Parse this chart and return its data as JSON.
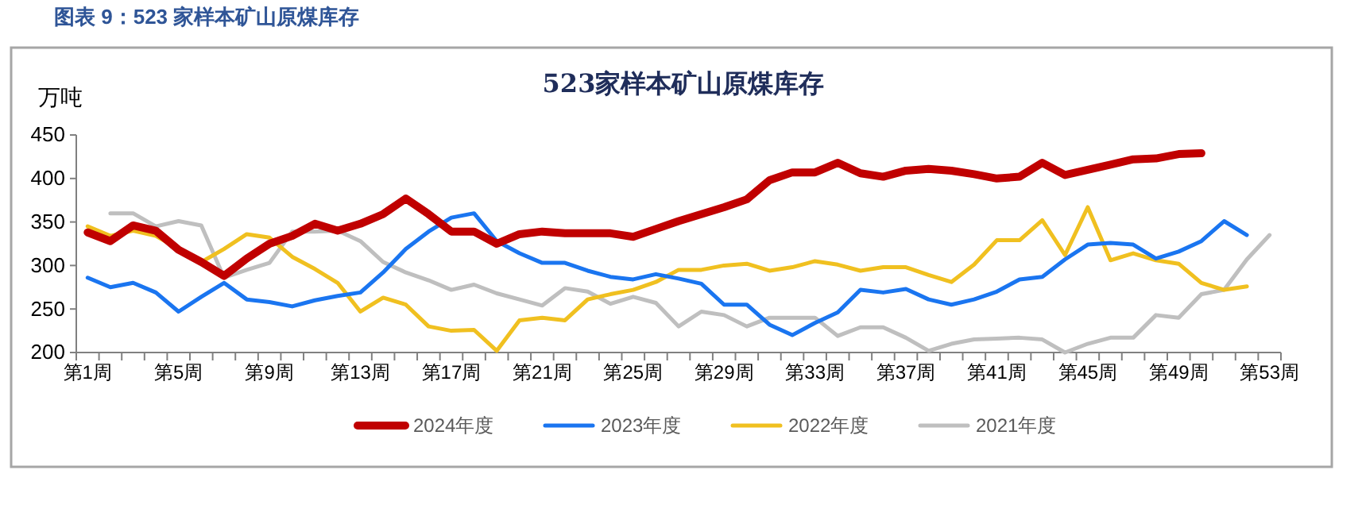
{
  "chart_data": {
    "type": "line",
    "title": "523家样本矿山原煤库存",
    "ylabel": "万吨",
    "annotations": [
      "图表 9：523 家样本矿山原煤库存"
    ],
    "categories": [
      "第1周",
      null,
      null,
      null,
      "第5周",
      null,
      null,
      null,
      "第9周",
      null,
      null,
      null,
      "第13周",
      null,
      null,
      null,
      "第17周",
      null,
      null,
      null,
      "第21周",
      null,
      null,
      null,
      "第25周",
      null,
      null,
      null,
      "第29周",
      null,
      null,
      null,
      "第33周",
      null,
      null,
      null,
      "第37周",
      null,
      null,
      null,
      "第41周",
      null,
      null,
      null,
      "第45周",
      null,
      null,
      null,
      "第49周",
      null,
      null,
      null,
      "第53周"
    ],
    "ylim": [
      200,
      450
    ],
    "yticks": [
      200,
      250,
      300,
      350,
      400,
      450
    ],
    "legend": "bottom",
    "series": [
      {
        "name": "2024年度",
        "color": "#c00000",
        "values": [
          338,
          328,
          346,
          340,
          318,
          304,
          288,
          308,
          325,
          334,
          348,
          340,
          348,
          359,
          377,
          359,
          339,
          339,
          325,
          336,
          339,
          337,
          337,
          337,
          333,
          342,
          351,
          359,
          367,
          376,
          398,
          407,
          407,
          418,
          406,
          402,
          409,
          411,
          409,
          405,
          400,
          402,
          418,
          404,
          410,
          416,
          422,
          423,
          428,
          429,
          null,
          null,
          null
        ]
      },
      {
        "name": "2023年度",
        "color": "#1a75f0",
        "values": [
          286,
          275,
          280,
          269,
          247,
          264,
          280,
          261,
          258,
          253,
          260,
          265,
          269,
          292,
          319,
          339,
          355,
          360,
          328,
          314,
          303,
          303,
          294,
          287,
          284,
          290,
          285,
          279,
          255,
          255,
          232,
          220,
          234,
          246,
          272,
          269,
          273,
          261,
          255,
          261,
          270,
          284,
          287,
          307,
          324,
          326,
          324,
          308,
          316,
          328,
          351,
          335,
          null
        ]
      },
      {
        "name": "2022年度",
        "color": "#f0c020",
        "values": [
          345,
          334,
          340,
          334,
          319,
          304,
          319,
          336,
          332,
          310,
          296,
          280,
          247,
          263,
          255,
          230,
          225,
          226,
          202,
          237,
          240,
          237,
          261,
          267,
          272,
          281,
          295,
          295,
          300,
          302,
          294,
          298,
          305,
          301,
          294,
          298,
          298,
          289,
          281,
          301,
          329,
          329,
          352,
          312,
          367,
          306,
          314,
          306,
          302,
          280,
          272,
          276,
          null
        ]
      },
      {
        "name": "2021年度",
        "color": "#bfbfbf",
        "values": [
          null,
          360,
          360,
          345,
          351,
          346,
          286,
          295,
          303,
          339,
          339,
          340,
          328,
          304,
          292,
          283,
          272,
          278,
          268,
          261,
          254,
          274,
          270,
          256,
          264,
          257,
          230,
          247,
          243,
          230,
          240,
          240,
          240,
          219,
          229,
          229,
          217,
          202,
          210,
          215,
          216,
          217,
          215,
          200,
          210,
          217,
          217,
          243,
          240,
          267,
          272,
          307,
          335
        ]
      }
    ]
  }
}
